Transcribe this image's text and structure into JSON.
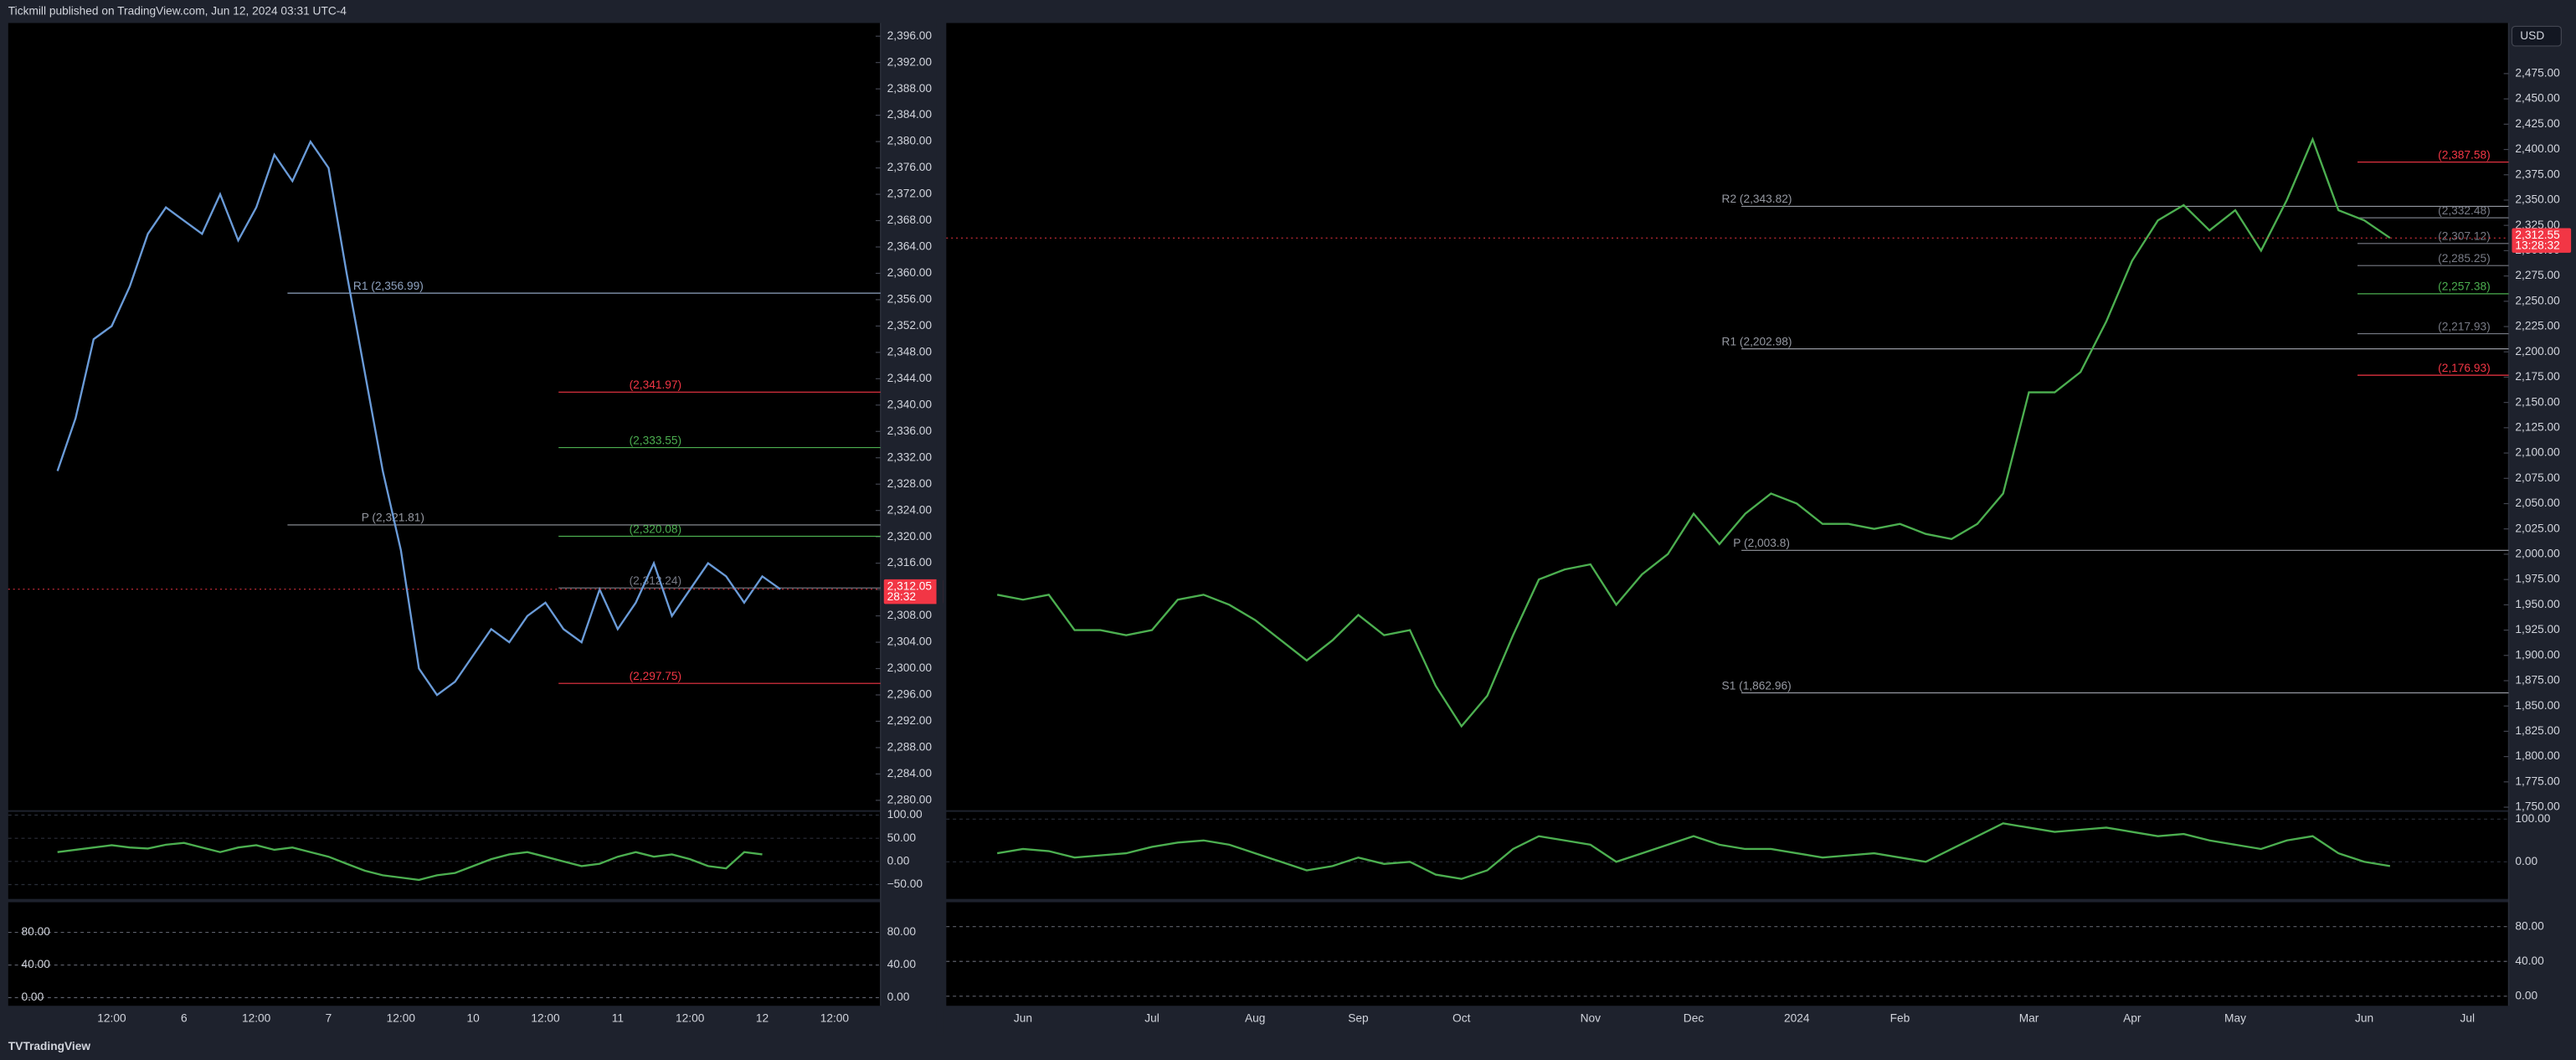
{
  "header": {
    "publisher": "Tickmill published on TradingView.com, Jun 12, 2024 03:31 UTC-4"
  },
  "footer": {
    "brand": "TradingView"
  },
  "chart_data": [
    {
      "type": "line",
      "color": "#6a9bd8",
      "categories": [
        null,
        null,
        null,
        null,
        "12:00",
        null,
        null,
        null,
        "6",
        null,
        null,
        null,
        "12:00",
        null,
        null,
        null,
        "7",
        null,
        null,
        null,
        "12:00",
        null,
        null,
        null,
        "10",
        null,
        null,
        null,
        "12:00",
        null,
        null,
        null,
        "11",
        null,
        null,
        null,
        "12:00",
        null,
        null,
        null,
        "12",
        null,
        null,
        null,
        "12:00"
      ],
      "values": [
        null,
        2330,
        2338,
        2350,
        2352,
        2358,
        2366,
        2370,
        2368,
        2366,
        2372,
        2365,
        2370,
        2378,
        2374,
        2380,
        2376,
        2360,
        2345,
        2330,
        2318,
        2300,
        2296,
        2298,
        2302,
        2306,
        2304,
        2308,
        2310,
        2306,
        2304,
        2312,
        2306,
        2310,
        2316,
        2308,
        2312,
        2316,
        2314,
        2310,
        2314,
        2312.05,
        null,
        null,
        null
      ],
      "ylim": [
        2278.5,
        2398
      ],
      "yticks": [
        {
          "value": 2396,
          "label": "2,396.00"
        },
        {
          "value": 2392,
          "label": "2,392.00"
        },
        {
          "value": 2388,
          "label": "2,388.00"
        },
        {
          "value": 2384,
          "label": "2,384.00"
        },
        {
          "value": 2380,
          "label": "2,380.00"
        },
        {
          "value": 2376,
          "label": "2,376.00"
        },
        {
          "value": 2372,
          "label": "2,372.00"
        },
        {
          "value": 2368,
          "label": "2,368.00"
        },
        {
          "value": 2364,
          "label": "2,364.00"
        },
        {
          "value": 2360,
          "label": "2,360.00"
        },
        {
          "value": 2356,
          "label": "2,356.00"
        },
        {
          "value": 2352,
          "label": "2,352.00"
        },
        {
          "value": 2348,
          "label": "2,348.00"
        },
        {
          "value": 2344,
          "label": "2,344.00"
        },
        {
          "value": 2340,
          "label": "2,340.00"
        },
        {
          "value": 2336,
          "label": "2,336.00"
        },
        {
          "value": 2332,
          "label": "2,332.00"
        },
        {
          "value": 2328,
          "label": "2,328.00"
        },
        {
          "value": 2324,
          "label": "2,324.00"
        },
        {
          "value": 2320,
          "label": "2,320.00"
        },
        {
          "value": 2316,
          "label": "2,316.00"
        },
        {
          "value": 2312,
          "label": "2,312.00"
        },
        {
          "value": 2308,
          "label": "2,308.00"
        },
        {
          "value": 2304,
          "label": "2,304.00"
        },
        {
          "value": 2300,
          "label": "2,300.00"
        },
        {
          "value": 2296,
          "label": "2,296.00"
        },
        {
          "value": 2292,
          "label": "2,292.00"
        },
        {
          "value": 2288,
          "label": "2,288.00"
        },
        {
          "value": 2284,
          "label": "2,284.00"
        },
        {
          "value": 2280,
          "label": "2,280.00"
        }
      ],
      "levels": [
        {
          "label": "R1 (2,356.99)",
          "value": 2356.99,
          "color": "#8fa3c0"
        },
        {
          "label": "P (2,321.81)",
          "value": 2321.81,
          "color": "#9598a1"
        },
        {
          "label": "(2,341.97)",
          "value": 2341.97,
          "color": "#f23645"
        },
        {
          "label": "(2,333.55)",
          "value": 2333.55,
          "color": "#4caf50"
        },
        {
          "label": "(2,320.08)",
          "value": 2320.08,
          "color": "#4caf50"
        },
        {
          "label": "(2,312.24)",
          "value": 2312.24,
          "color": "#787b86"
        },
        {
          "label": "(2,297.75)",
          "value": 2297.75,
          "color": "#f23645"
        }
      ],
      "last_price": {
        "value": 2312.05,
        "label": "2,312.05",
        "countdown": "28:32"
      },
      "oscillator": {
        "color": "#4caf50",
        "ylim": [
          -81,
          107
        ],
        "values": [
          null,
          20,
          25,
          30,
          35,
          30,
          28,
          36,
          40,
          30,
          20,
          30,
          35,
          25,
          30,
          20,
          10,
          -5,
          -20,
          -30,
          -35,
          -40,
          -30,
          -25,
          -10,
          5,
          15,
          20,
          10,
          0,
          -10,
          -5,
          10,
          20,
          10,
          15,
          5,
          -10,
          -15,
          20,
          15,
          null,
          null,
          null,
          null
        ],
        "yticks": [
          {
            "value": 100,
            "label": "100.00"
          },
          {
            "value": 50,
            "label": "50.00"
          },
          {
            "value": 0,
            "label": "0.00"
          },
          {
            "value": -50,
            "label": "−50.00"
          }
        ]
      },
      "stochastic": {
        "ylim": [
          -10,
          117
        ],
        "yticks": [
          {
            "value": 80,
            "label": "80.00"
          },
          {
            "value": 40,
            "label": "40.00"
          },
          {
            "value": 0,
            "label": "0.00"
          }
        ]
      }
    },
    {
      "type": "line",
      "color": "#4caf50",
      "currency": "USD",
      "categories": [
        null,
        "Jun",
        null,
        null,
        null,
        null,
        "Jul",
        null,
        null,
        null,
        "Aug",
        null,
        null,
        null,
        "Sep",
        null,
        null,
        null,
        "Oct",
        null,
        null,
        null,
        null,
        "Nov",
        null,
        null,
        null,
        "Dec",
        null,
        null,
        null,
        "2024",
        null,
        null,
        null,
        "Feb",
        null,
        null,
        null,
        null,
        "Mar",
        null,
        null,
        null,
        "Apr",
        null,
        null,
        null,
        "May",
        null,
        null,
        null,
        null,
        "Jun",
        null,
        null,
        null,
        "Jul"
      ],
      "values": [
        1960,
        1955,
        1960,
        1925,
        1925,
        1920,
        1925,
        1955,
        1960,
        1950,
        1935,
        1915,
        1895,
        1915,
        1940,
        1920,
        1925,
        1870,
        1830,
        1860,
        1920,
        1975,
        1985,
        1990,
        1950,
        1980,
        2000,
        2040,
        2010,
        2040,
        2060,
        2050,
        2030,
        2030,
        2025,
        2030,
        2020,
        2015,
        2030,
        2060,
        2160,
        2160,
        2180,
        2230,
        2290,
        2330,
        2345,
        2320,
        2340,
        2300,
        2350,
        2410,
        2340,
        2330,
        2312.55,
        null,
        null,
        null
      ],
      "ylim": [
        1747,
        2525
      ],
      "yticks": [
        {
          "value": 2475,
          "label": "2,475.00"
        },
        {
          "value": 2450,
          "label": "2,450.00"
        },
        {
          "value": 2425,
          "label": "2,425.00"
        },
        {
          "value": 2400,
          "label": "2,400.00"
        },
        {
          "value": 2375,
          "label": "2,375.00"
        },
        {
          "value": 2350,
          "label": "2,350.00"
        },
        {
          "value": 2325,
          "label": "2,325.00"
        },
        {
          "value": 2300,
          "label": "2,300.00"
        },
        {
          "value": 2275,
          "label": "2,275.00"
        },
        {
          "value": 2250,
          "label": "2,250.00"
        },
        {
          "value": 2225,
          "label": "2,225.00"
        },
        {
          "value": 2200,
          "label": "2,200.00"
        },
        {
          "value": 2175,
          "label": "2,175.00"
        },
        {
          "value": 2150,
          "label": "2,150.00"
        },
        {
          "value": 2125,
          "label": "2,125.00"
        },
        {
          "value": 2100,
          "label": "2,100.00"
        },
        {
          "value": 2075,
          "label": "2,075.00"
        },
        {
          "value": 2050,
          "label": "2,050.00"
        },
        {
          "value": 2025,
          "label": "2,025.00"
        },
        {
          "value": 2000,
          "label": "2,000.00"
        },
        {
          "value": 1975,
          "label": "1,975.00"
        },
        {
          "value": 1950,
          "label": "1,950.00"
        },
        {
          "value": 1925,
          "label": "1,925.00"
        },
        {
          "value": 1900,
          "label": "1,900.00"
        },
        {
          "value": 1875,
          "label": "1,875.00"
        },
        {
          "value": 1850,
          "label": "1,850.00"
        },
        {
          "value": 1825,
          "label": "1,825.00"
        },
        {
          "value": 1800,
          "label": "1,800.00"
        },
        {
          "value": 1775,
          "label": "1,775.00"
        },
        {
          "value": 1750,
          "label": "1,750.00"
        }
      ],
      "levels": [
        {
          "label": "R2 (2,343.82)",
          "value": 2343.82,
          "color": "#9598a1"
        },
        {
          "label": "R1 (2,202.98)",
          "value": 2202.98,
          "color": "#9598a1"
        },
        {
          "label": "P (2,003.8)",
          "value": 2003.8,
          "color": "#9598a1"
        },
        {
          "label": "S1 (1,862.96)",
          "value": 1862.96,
          "color": "#9598a1"
        },
        {
          "label": "(2,387.58)",
          "value": 2387.58,
          "color": "#f23645"
        },
        {
          "label": "(2,332.48)",
          "value": 2332.48,
          "color": "#787b86"
        },
        {
          "label": "(2,307.12)",
          "value": 2307.12,
          "color": "#787b86"
        },
        {
          "label": "(2,285.25)",
          "value": 2285.25,
          "color": "#787b86"
        },
        {
          "label": "(2,257.38)",
          "value": 2257.38,
          "color": "#4caf50"
        },
        {
          "label": "(2,217.93)",
          "value": 2217.93,
          "color": "#787b86"
        },
        {
          "label": "(2,176.93)",
          "value": 2176.93,
          "color": "#f23645"
        }
      ],
      "last_price": {
        "value": 2312.55,
        "label": "2,312.55",
        "countdown": "13:28:32"
      },
      "oscillator": {
        "color": "#4caf50",
        "ylim": [
          -87,
          117
        ],
        "values": [
          20,
          30,
          25,
          10,
          15,
          20,
          35,
          45,
          50,
          40,
          20,
          0,
          -20,
          -10,
          10,
          -5,
          0,
          -30,
          -40,
          -20,
          30,
          60,
          50,
          40,
          0,
          20,
          40,
          60,
          40,
          30,
          30,
          20,
          10,
          15,
          20,
          10,
          0,
          30,
          60,
          90,
          80,
          70,
          75,
          80,
          70,
          60,
          65,
          50,
          40,
          30,
          50,
          60,
          20,
          0,
          -10,
          null,
          null,
          null
        ],
        "yticks": [
          {
            "value": 100,
            "label": "100.00"
          },
          {
            "value": 0,
            "label": "0.00"
          }
        ]
      },
      "stochastic": {
        "ylim": [
          -11,
          108
        ],
        "yticks": [
          {
            "value": 80,
            "label": "80.00"
          },
          {
            "value": 40,
            "label": "40.00"
          },
          {
            "value": 0,
            "label": "0.00"
          }
        ]
      }
    }
  ]
}
